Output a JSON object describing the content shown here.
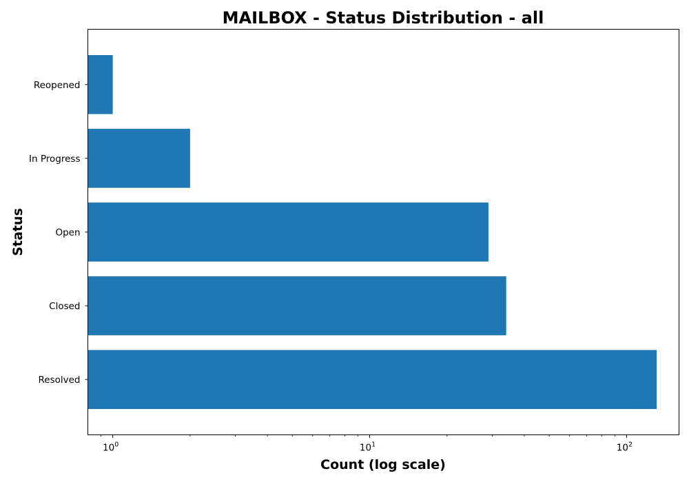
{
  "chart_data": {
    "type": "bar",
    "orientation": "horizontal",
    "title": "MAILBOX - Status Distribution - all",
    "xlabel": "Count (log scale)",
    "ylabel": "Status",
    "x_scale": "log",
    "xlim": [
      0.8,
      160
    ],
    "x_ticks": [
      {
        "value": 1,
        "base": "10",
        "exp": "0"
      },
      {
        "value": 10,
        "base": "10",
        "exp": "1"
      },
      {
        "value": 100,
        "base": "10",
        "exp": "2"
      }
    ],
    "categories": [
      "Reopened",
      "In Progress",
      "Open",
      "Closed",
      "Resolved"
    ],
    "values": [
      1,
      2,
      29,
      34,
      131
    ],
    "bar_color": "#1f77b4",
    "grid": false,
    "legend": "none"
  }
}
